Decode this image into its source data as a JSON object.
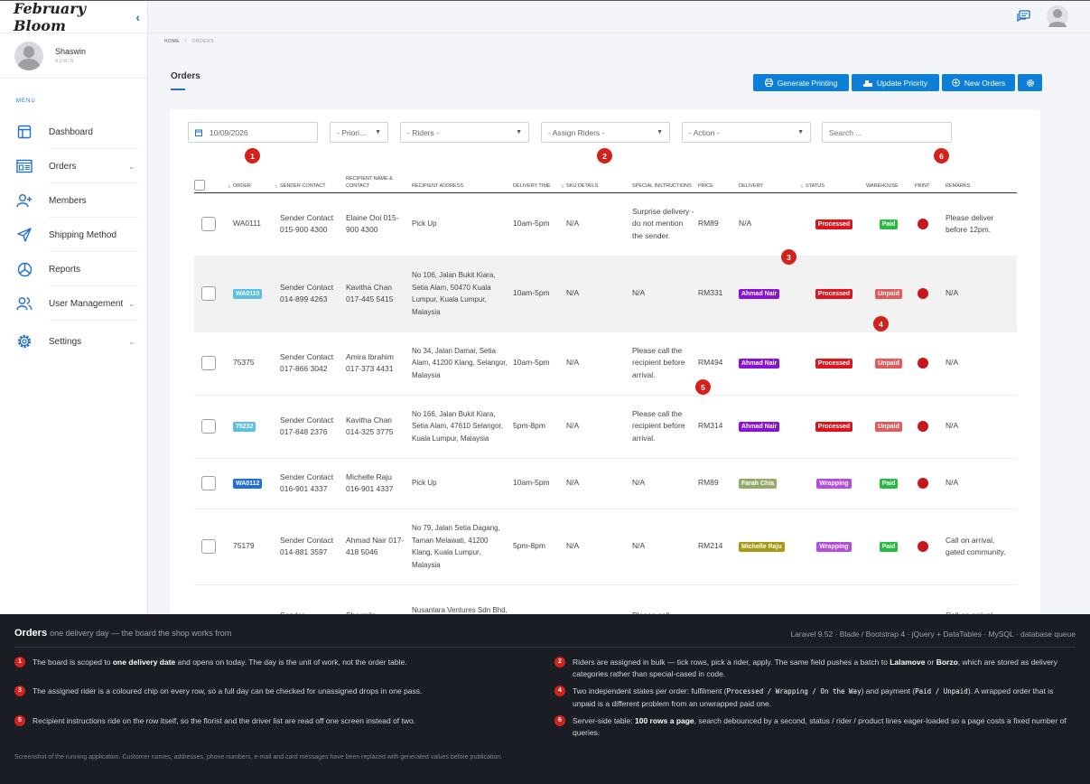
{
  "brand": "February Bloom",
  "user": {
    "name": "Shaswin",
    "role": "ADMIN"
  },
  "menu_label": "MENU",
  "nav": [
    {
      "label": "Dashboard",
      "icon": "dashboard-icon"
    },
    {
      "label": "Orders",
      "icon": "orders-icon",
      "chevron": true
    },
    {
      "label": "Members",
      "icon": "add-user-icon"
    },
    {
      "label": "Shipping Method",
      "icon": "send-icon"
    },
    {
      "label": "Reports",
      "icon": "pie-chart-icon"
    },
    {
      "label": "User Management",
      "icon": "users-icon",
      "chevron": true
    },
    {
      "label": "Settings",
      "icon": "gear-icon",
      "chevron": true
    }
  ],
  "breadcrumb": {
    "home": "HOME",
    "sep": "/",
    "current": "ORDERS"
  },
  "page_title": "Orders",
  "actions": {
    "generate": "Generate Printing",
    "priority": "Update Priority",
    "new": "New Orders"
  },
  "filters": {
    "date": "10/09/2026",
    "priority": "- Priori...",
    "riders": "- Riders -",
    "assign": "- Assign Riders -",
    "action": "- Action -",
    "search_placeholder": "Search ..."
  },
  "columns": [
    "ORDER",
    "SENDER CONTACT",
    "RECIPIENT NAME & CONTACT",
    "RECIPIENT ADDRESS",
    "DELIVERY TIME",
    "SKU DETAILS",
    "SPECIAL INSTRUCTIONS",
    "PRICE",
    "DELIVERY",
    "STATUS",
    "WAREHOUSE",
    "PRINT",
    "REMARKS"
  ],
  "colors": {
    "accent": "#0d7fd8",
    "marker": "#d3221c",
    "processed": "#e0141d",
    "paid": "#28b93f",
    "unpaid": "#e35a5a",
    "wrapping": "#b54be0"
  },
  "rows": [
    {
      "order": "WA0111",
      "order_chip": null,
      "sender": "Sender Contact 015-900 4300",
      "recipient": "Elaine Ooi 015-900 4300",
      "address": "Pick Up",
      "time": "10am-5pm",
      "sku": "N/A",
      "instructions": "Surprise delivery - do not mention the sender.",
      "price": "RM89",
      "delivery": "N/A",
      "delivery_color": null,
      "status": "Processed",
      "status_color": "#e0141d",
      "warehouse": "Paid",
      "warehouse_color": "#28b93f",
      "remarks": "Please deliver before 12pm."
    },
    {
      "order": "WA0110",
      "order_chip": "#5bc0de",
      "sender": "Sender Contact 014-899 4263",
      "recipient": "Kavitha Chan 017-445 5415",
      "address": "No 106, Jalan Bukit Kiara, Setia Alam, 50470 Kuala Lumpur, Kuala Lumpur, Malaysia",
      "time": "10am-5pm",
      "sku": "N/A",
      "instructions": "N/A",
      "price": "RM331",
      "delivery": "Ahmad Nair",
      "delivery_color": "#8a12d6",
      "status": "Processed",
      "status_color": "#e0141d",
      "warehouse": "Unpaid",
      "warehouse_color": "#e35a5a",
      "remarks": "N/A"
    },
    {
      "order": "75375",
      "order_chip": null,
      "sender": "Sender Contact 017-866 3042",
      "recipient": "Amira Ibrahim 017-373 4431",
      "address": "No 34, Jalan Damai, Setia Alam, 41200 Klang, Selangor, Malaysia",
      "time": "10am-5pm",
      "sku": "N/A",
      "instructions": "Please call the recipient before arrival.",
      "price": "RM494",
      "delivery": "Ahmad Nair",
      "delivery_color": "#8a12d6",
      "status": "Processed",
      "status_color": "#e0141d",
      "warehouse": "Unpaid",
      "warehouse_color": "#e35a5a",
      "remarks": "N/A"
    },
    {
      "order": "75232",
      "order_chip": "#5bc0de",
      "sender": "Sender Contact 017-848 2376",
      "recipient": "Kavitha Chan 014-325 3775",
      "address": "No 166, Jalan Bukit Kiara, Setia Alam, 47610 Selangor, Kuala Lumpur, Malaysia",
      "time": "5pm-8pm",
      "sku": "N/A",
      "instructions": "Please call the recipient before arrival.",
      "price": "RM314",
      "delivery": "Ahmad Nair",
      "delivery_color": "#8a12d6",
      "status": "Processed",
      "status_color": "#e0141d",
      "warehouse": "Unpaid",
      "warehouse_color": "#e35a5a",
      "remarks": "N/A"
    },
    {
      "order": "WA0112",
      "order_chip": "#1f6fd6",
      "sender": "Sender Contact 016-901 4337",
      "recipient": "Michelle Raju 016-901 4337",
      "address": "Pick Up",
      "time": "10am-5pm",
      "sku": "N/A",
      "instructions": "N/A",
      "price": "RM89",
      "delivery": "Farah Chia",
      "delivery_color": "#97a86b",
      "status": "Wrapping",
      "status_color": "#b54be0",
      "warehouse": "Paid",
      "warehouse_color": "#28b93f",
      "remarks": "N/A"
    },
    {
      "order": "75179",
      "order_chip": null,
      "sender": "Sender Contact 014-881 3597",
      "recipient": "Ahmad Nair 017-418 5046",
      "address": "No 79, Jalan Setia Dagang, Taman Melawati, 41200 Klang, Kuala Lumpur, Malaysia",
      "time": "5pm-8pm",
      "sku": "N/A",
      "instructions": "N/A",
      "price": "RM214",
      "delivery": "Michelle Raju",
      "delivery_color": "#a89a12",
      "status": "Wrapping",
      "status_color": "#b54be0",
      "warehouse": "Paid",
      "warehouse_color": "#28b93f",
      "remarks": "Call on arrival, gated community."
    },
    {
      "order": "",
      "order_chip": null,
      "sender": "Sender",
      "recipient": "Sharmila",
      "address": "Nusantara Ventures Sdn Bhd, No 115,",
      "time": "",
      "sku": "",
      "instructions": "Please call",
      "price": "",
      "delivery": "",
      "delivery_color": null,
      "status": "",
      "status_color": null,
      "warehouse": "",
      "warehouse_color": null,
      "remarks": "Call on arrival"
    }
  ],
  "panel": {
    "title": "Orders",
    "subtitle": "one delivery day — the board the shop works from",
    "stack": "Laravel 9.52 · Blade / Bootstrap 4 · jQuery + DataTables · MySQL · database queue",
    "footnote": "Screenshot of the running application. Customer names, addresses, phone numbers, e-mail and card messages have been replaced with generated values before publication."
  }
}
